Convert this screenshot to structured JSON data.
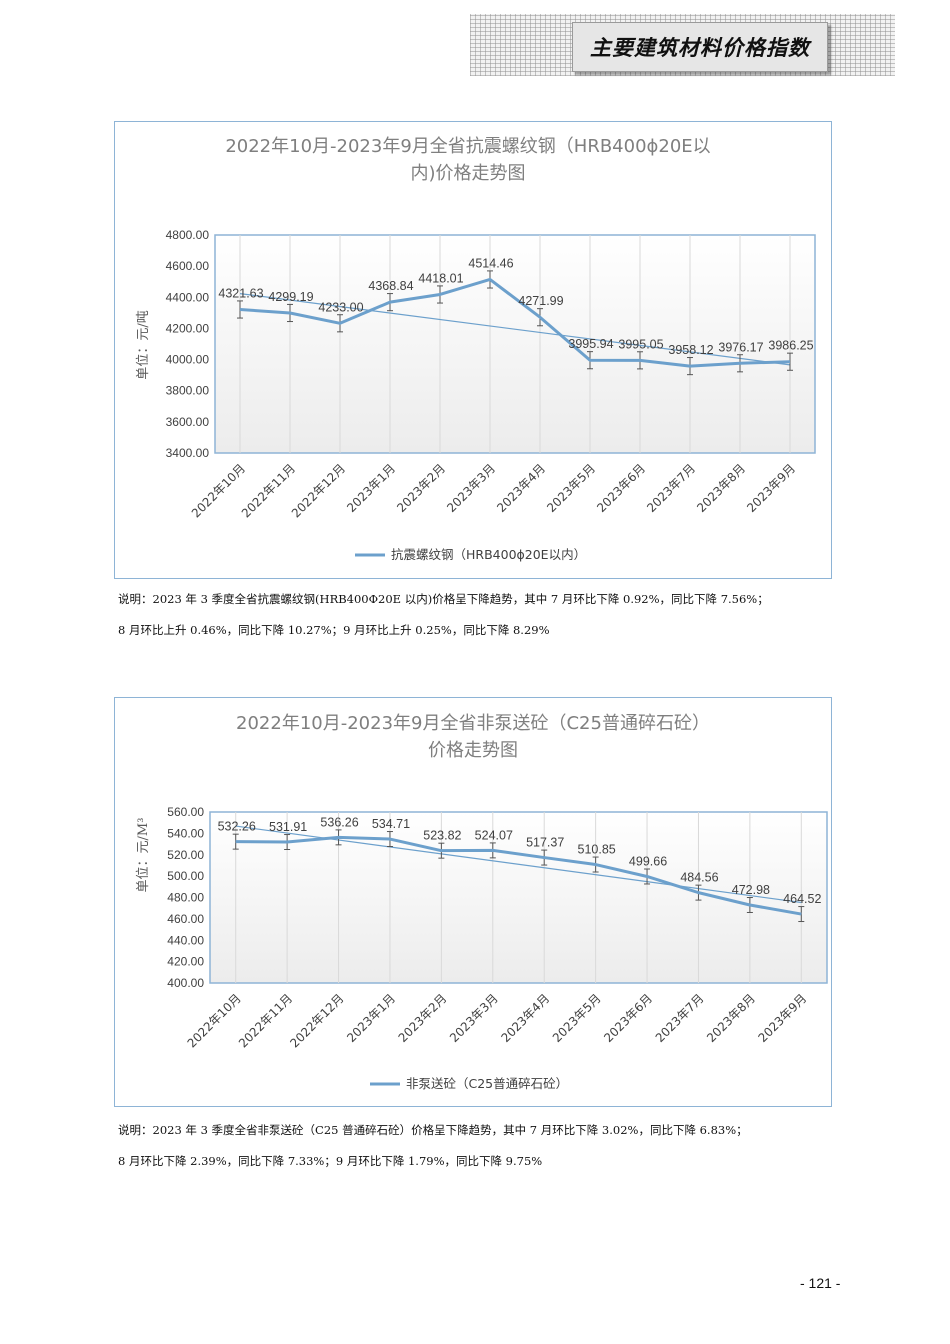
{
  "header": {
    "title": "主要建筑材料价格指数"
  },
  "charts": [
    {
      "title_line1": "2022年10月-2023年9月全省抗震螺纹钢（HRB400ϕ20E以",
      "title_line2": "内)价格走势图",
      "note_line1": "说明：2023 年 3 季度全省抗震螺纹钢(HRB400Φ20E 以内)价格呈下降趋势，其中 7 月环比下降 0.92%，同比下降 7.56%；",
      "note_line2": "8 月环比上升 0.46%，同比下降 10.27%；9 月环比上升 0.25%，同比下降 8.29%"
    },
    {
      "title_line1": "2022年10月-2023年9月全省非泵送砼（C25普通碎石砼）",
      "title_line2": "价格走势图",
      "note_line1": "说明：2023 年 3 季度全省非泵送砼（C25 普通碎石砼）价格呈下降趋势，其中 7 月环比下降 3.02%，同比下降 6.83%；",
      "note_line2": "8 月环比下降 2.39%，同比下降 7.33%；9 月环比下降 1.79%，同比下降 9.75%"
    }
  ],
  "page": {
    "number": "- 121 -"
  },
  "colors": {
    "series": "#6ca0cc",
    "frame": "#8eb4d6",
    "title": "#7f7f7f",
    "trend": "#6ca0cc",
    "error_bar": "#555555"
  },
  "chart_data": [
    {
      "type": "line",
      "title": "2022年10月-2023年9月全省抗震螺纹钢（HRB400ϕ20E以内)价格走势图",
      "ylabel": "单位：元/吨",
      "xlabel": "",
      "categories": [
        "2022年10月",
        "2022年11月",
        "2022年12月",
        "2023年1月",
        "2023年2月",
        "2023年3月",
        "2023年4月",
        "2023年5月",
        "2023年6月",
        "2023年7月",
        "2023年8月",
        "2023年9月"
      ],
      "series": [
        {
          "name": "抗震螺纹钢（HRB400ϕ20E以内）",
          "values": [
            4321.63,
            4299.19,
            4233.0,
            4368.84,
            4418.01,
            4514.46,
            4271.99,
            3995.94,
            3995.05,
            3958.12,
            3976.17,
            3986.25
          ],
          "labels": [
            "4321.63",
            "4299.19",
            "4233.00",
            "4368.84",
            "4418.01",
            "4514.46",
            "4271.99",
            "3995.94",
            "3995.05",
            "3958.12",
            "3976.17",
            "3986.25"
          ]
        }
      ],
      "ylim": [
        3400,
        4800
      ],
      "ytick_step": 200,
      "ytick_labels": [
        "3400.00",
        "3600.00",
        "3800.00",
        "4000.00",
        "4200.00",
        "4400.00",
        "4600.00",
        "4800.00"
      ],
      "trendline": true,
      "error_bars": true,
      "grid": true,
      "legend": "bottom"
    },
    {
      "type": "line",
      "title": "2022年10月-2023年9月全省非泵送砼（C25普通碎石砼）价格走势图",
      "ylabel": "单位：元/M³",
      "xlabel": "",
      "categories": [
        "2022年10月",
        "2022年11月",
        "2022年12月",
        "2023年1月",
        "2023年2月",
        "2023年3月",
        "2023年4月",
        "2023年5月",
        "2023年6月",
        "2023年7月",
        "2023年8月",
        "2023年9月"
      ],
      "series": [
        {
          "name": "非泵送砼（C25普通碎石砼）",
          "values": [
            532.26,
            531.91,
            536.26,
            534.71,
            523.82,
            524.07,
            517.37,
            510.85,
            499.66,
            484.56,
            472.98,
            464.52
          ],
          "labels": [
            "532.26",
            "531.91",
            "536.26",
            "534.71",
            "523.82",
            "524.07",
            "517.37",
            "510.85",
            "499.66",
            "484.56",
            "472.98",
            "464.52"
          ]
        }
      ],
      "ylim": [
        400,
        560
      ],
      "ytick_step": 20,
      "ytick_labels": [
        "400.00",
        "420.00",
        "440.00",
        "460.00",
        "480.00",
        "500.00",
        "520.00",
        "540.00",
        "560.00"
      ],
      "trendline": true,
      "error_bars": true,
      "grid": true,
      "legend": "bottom"
    }
  ]
}
